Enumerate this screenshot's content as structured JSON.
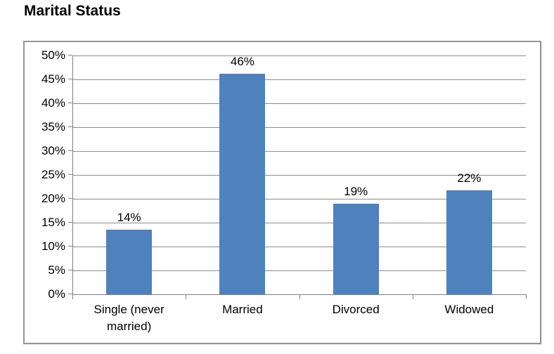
{
  "page_title": "Marital Status",
  "chart_data": {
    "type": "bar",
    "title": "Marital Status",
    "categories": [
      "Single (never married)",
      "Married",
      "Divorced",
      "Widowed"
    ],
    "series": [
      {
        "name": "Marital Status",
        "values": [
          14,
          46,
          19,
          22
        ],
        "values_precise": [
          13.6,
          46.2,
          19.0,
          21.8
        ],
        "data_labels": [
          "14%",
          "46%",
          "19%",
          "22%"
        ]
      }
    ],
    "xlabel": "",
    "ylabel": "",
    "ylim": [
      0,
      50
    ],
    "ytick_step": 5,
    "ytick_labels": [
      "0%",
      "5%",
      "10%",
      "15%",
      "20%",
      "25%",
      "30%",
      "35%",
      "40%",
      "45%",
      "50%"
    ],
    "grid": true,
    "legend": false,
    "colors": {
      "bar": "#4f81bd",
      "gridline": "#8c8c8c",
      "axis": "#7f7f7f",
      "frame_border": "#969696",
      "text": "#000000",
      "background": "#ffffff"
    }
  }
}
